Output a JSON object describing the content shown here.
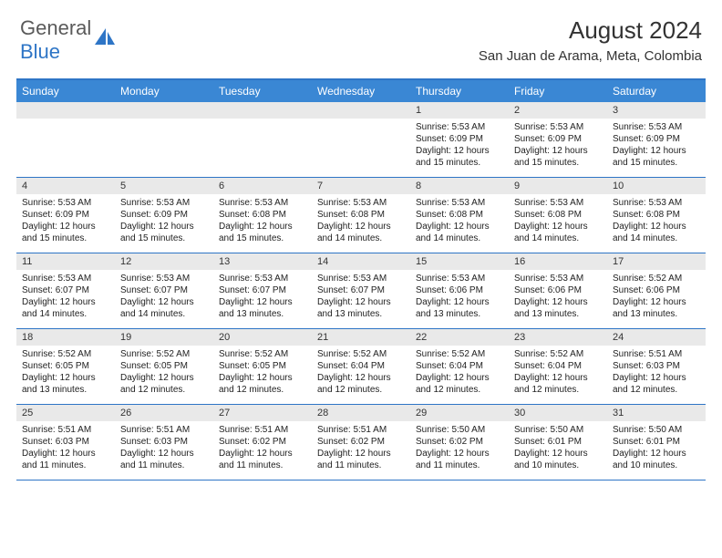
{
  "logo": {
    "text_general": "General",
    "text_blue": "Blue"
  },
  "title": "August 2024",
  "location": "San Juan de Arama, Meta, Colombia",
  "colors": {
    "header_bg": "#3a87d4",
    "border": "#2e75c6",
    "daynum_bg": "#e9e9e9",
    "text": "#333333",
    "logo_gray": "#5a5a5a",
    "logo_blue": "#2e75c6"
  },
  "day_names": [
    "Sunday",
    "Monday",
    "Tuesday",
    "Wednesday",
    "Thursday",
    "Friday",
    "Saturday"
  ],
  "weeks": [
    [
      null,
      null,
      null,
      null,
      {
        "n": "1",
        "sr": "5:53 AM",
        "ss": "6:09 PM",
        "dl": "12 hours and 15 minutes."
      },
      {
        "n": "2",
        "sr": "5:53 AM",
        "ss": "6:09 PM",
        "dl": "12 hours and 15 minutes."
      },
      {
        "n": "3",
        "sr": "5:53 AM",
        "ss": "6:09 PM",
        "dl": "12 hours and 15 minutes."
      }
    ],
    [
      {
        "n": "4",
        "sr": "5:53 AM",
        "ss": "6:09 PM",
        "dl": "12 hours and 15 minutes."
      },
      {
        "n": "5",
        "sr": "5:53 AM",
        "ss": "6:09 PM",
        "dl": "12 hours and 15 minutes."
      },
      {
        "n": "6",
        "sr": "5:53 AM",
        "ss": "6:08 PM",
        "dl": "12 hours and 15 minutes."
      },
      {
        "n": "7",
        "sr": "5:53 AM",
        "ss": "6:08 PM",
        "dl": "12 hours and 14 minutes."
      },
      {
        "n": "8",
        "sr": "5:53 AM",
        "ss": "6:08 PM",
        "dl": "12 hours and 14 minutes."
      },
      {
        "n": "9",
        "sr": "5:53 AM",
        "ss": "6:08 PM",
        "dl": "12 hours and 14 minutes."
      },
      {
        "n": "10",
        "sr": "5:53 AM",
        "ss": "6:08 PM",
        "dl": "12 hours and 14 minutes."
      }
    ],
    [
      {
        "n": "11",
        "sr": "5:53 AM",
        "ss": "6:07 PM",
        "dl": "12 hours and 14 minutes."
      },
      {
        "n": "12",
        "sr": "5:53 AM",
        "ss": "6:07 PM",
        "dl": "12 hours and 14 minutes."
      },
      {
        "n": "13",
        "sr": "5:53 AM",
        "ss": "6:07 PM",
        "dl": "12 hours and 13 minutes."
      },
      {
        "n": "14",
        "sr": "5:53 AM",
        "ss": "6:07 PM",
        "dl": "12 hours and 13 minutes."
      },
      {
        "n": "15",
        "sr": "5:53 AM",
        "ss": "6:06 PM",
        "dl": "12 hours and 13 minutes."
      },
      {
        "n": "16",
        "sr": "5:53 AM",
        "ss": "6:06 PM",
        "dl": "12 hours and 13 minutes."
      },
      {
        "n": "17",
        "sr": "5:52 AM",
        "ss": "6:06 PM",
        "dl": "12 hours and 13 minutes."
      }
    ],
    [
      {
        "n": "18",
        "sr": "5:52 AM",
        "ss": "6:05 PM",
        "dl": "12 hours and 13 minutes."
      },
      {
        "n": "19",
        "sr": "5:52 AM",
        "ss": "6:05 PM",
        "dl": "12 hours and 12 minutes."
      },
      {
        "n": "20",
        "sr": "5:52 AM",
        "ss": "6:05 PM",
        "dl": "12 hours and 12 minutes."
      },
      {
        "n": "21",
        "sr": "5:52 AM",
        "ss": "6:04 PM",
        "dl": "12 hours and 12 minutes."
      },
      {
        "n": "22",
        "sr": "5:52 AM",
        "ss": "6:04 PM",
        "dl": "12 hours and 12 minutes."
      },
      {
        "n": "23",
        "sr": "5:52 AM",
        "ss": "6:04 PM",
        "dl": "12 hours and 12 minutes."
      },
      {
        "n": "24",
        "sr": "5:51 AM",
        "ss": "6:03 PM",
        "dl": "12 hours and 12 minutes."
      }
    ],
    [
      {
        "n": "25",
        "sr": "5:51 AM",
        "ss": "6:03 PM",
        "dl": "12 hours and 11 minutes."
      },
      {
        "n": "26",
        "sr": "5:51 AM",
        "ss": "6:03 PM",
        "dl": "12 hours and 11 minutes."
      },
      {
        "n": "27",
        "sr": "5:51 AM",
        "ss": "6:02 PM",
        "dl": "12 hours and 11 minutes."
      },
      {
        "n": "28",
        "sr": "5:51 AM",
        "ss": "6:02 PM",
        "dl": "12 hours and 11 minutes."
      },
      {
        "n": "29",
        "sr": "5:50 AM",
        "ss": "6:02 PM",
        "dl": "12 hours and 11 minutes."
      },
      {
        "n": "30",
        "sr": "5:50 AM",
        "ss": "6:01 PM",
        "dl": "12 hours and 10 minutes."
      },
      {
        "n": "31",
        "sr": "5:50 AM",
        "ss": "6:01 PM",
        "dl": "12 hours and 10 minutes."
      }
    ]
  ],
  "labels": {
    "sunrise": "Sunrise:",
    "sunset": "Sunset:",
    "daylight": "Daylight:"
  }
}
